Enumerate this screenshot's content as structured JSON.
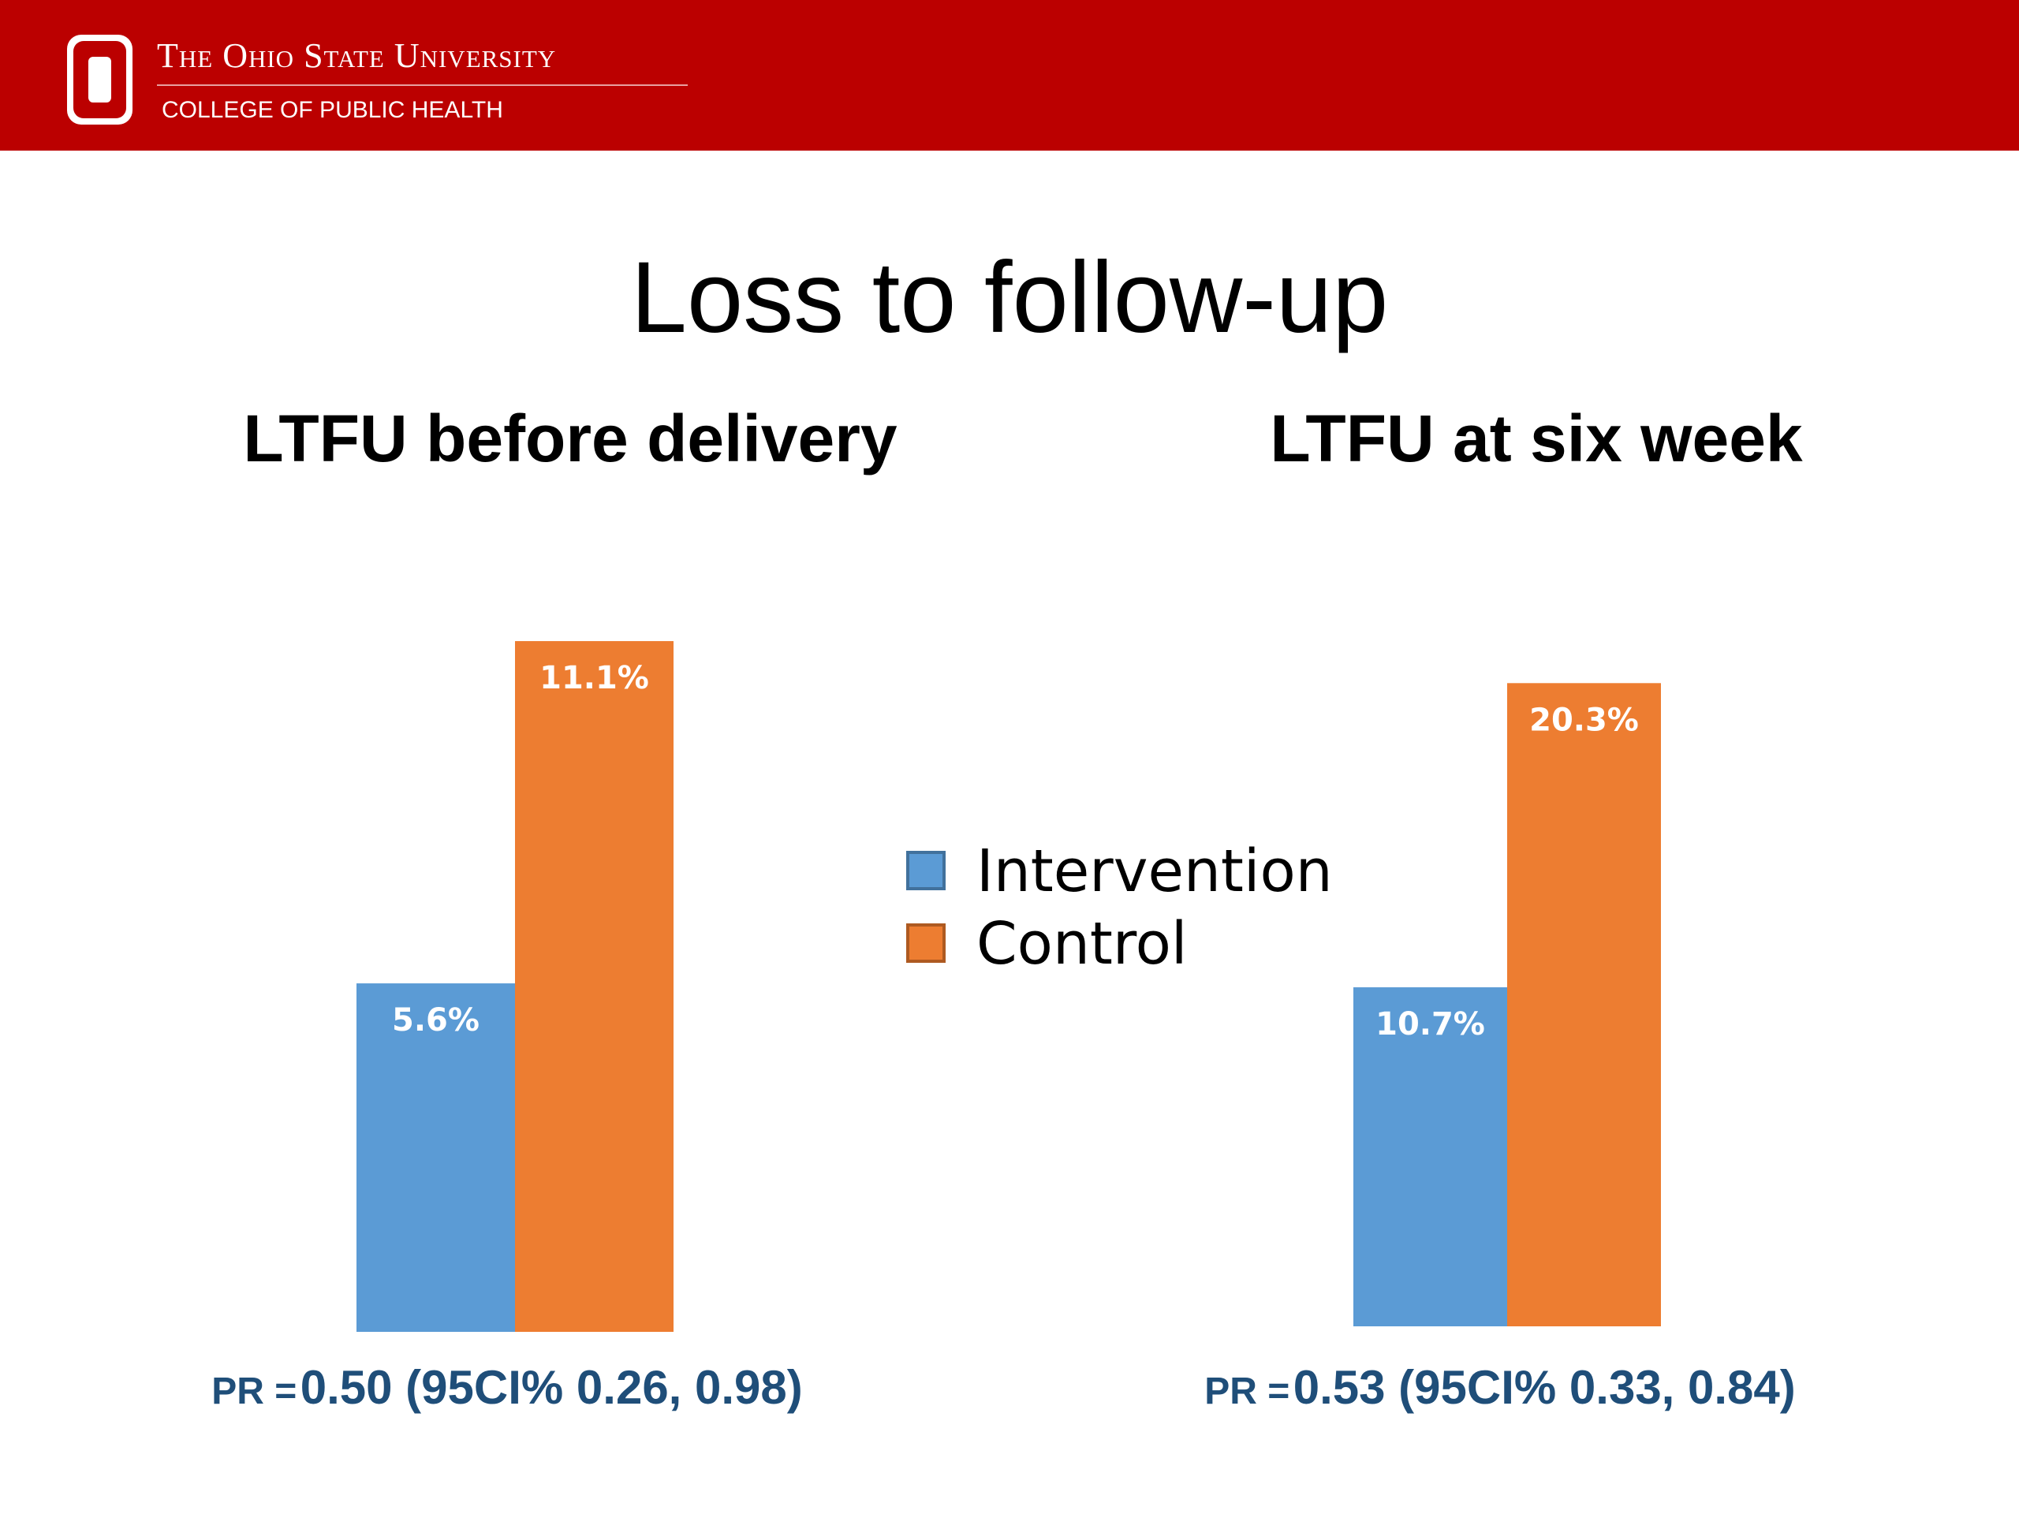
{
  "header": {
    "university": "The Ohio State University",
    "college": "COLLEGE OF PUBLIC HEALTH"
  },
  "title": "Loss to follow-up",
  "chart_data": [
    {
      "type": "bar",
      "title": "LTFU before delivery",
      "series": [
        {
          "name": "Intervention",
          "color": "#5b9bd5",
          "values": [
            5.6
          ],
          "value_labels": [
            "5.6%"
          ]
        },
        {
          "name": "Control",
          "color": "#ed7d31",
          "values": [
            11.1
          ],
          "value_labels": [
            "11.1%"
          ]
        }
      ],
      "ylim": [
        0,
        12
      ],
      "annotation_label": "PR =",
      "annotation": "0.50 (95CI% 0.26, 0.98)"
    },
    {
      "type": "bar",
      "title": "LTFU at six week",
      "series": [
        {
          "name": "Intervention",
          "color": "#5b9bd5",
          "values": [
            10.7
          ],
          "value_labels": [
            "10.7%"
          ]
        },
        {
          "name": "Control",
          "color": "#ed7d31",
          "values": [
            20.3
          ],
          "value_labels": [
            "20.3%"
          ]
        }
      ],
      "ylim": [
        0,
        22
      ],
      "annotation_label": "PR =",
      "annotation": "0.53 (95CI% 0.33, 0.84)"
    }
  ]
}
